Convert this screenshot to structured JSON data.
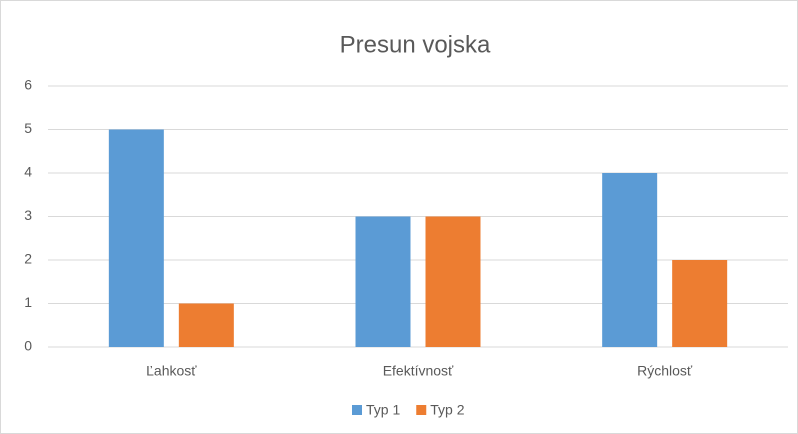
{
  "chart_data": {
    "type": "bar",
    "title": "Presun vojska",
    "categories": [
      "Ľahkosť",
      "Efektívnosť",
      "Rýchlosť"
    ],
    "series": [
      {
        "name": "Typ 1",
        "color": "#5b9bd5",
        "values": [
          5,
          3,
          4
        ]
      },
      {
        "name": "Typ 2",
        "color": "#ed7d31",
        "values": [
          1,
          3,
          2
        ]
      }
    ],
    "ylim": [
      0,
      6
    ],
    "yticks": [
      0,
      1,
      2,
      3,
      4,
      5,
      6
    ],
    "grid": true,
    "legend": "bottom"
  }
}
